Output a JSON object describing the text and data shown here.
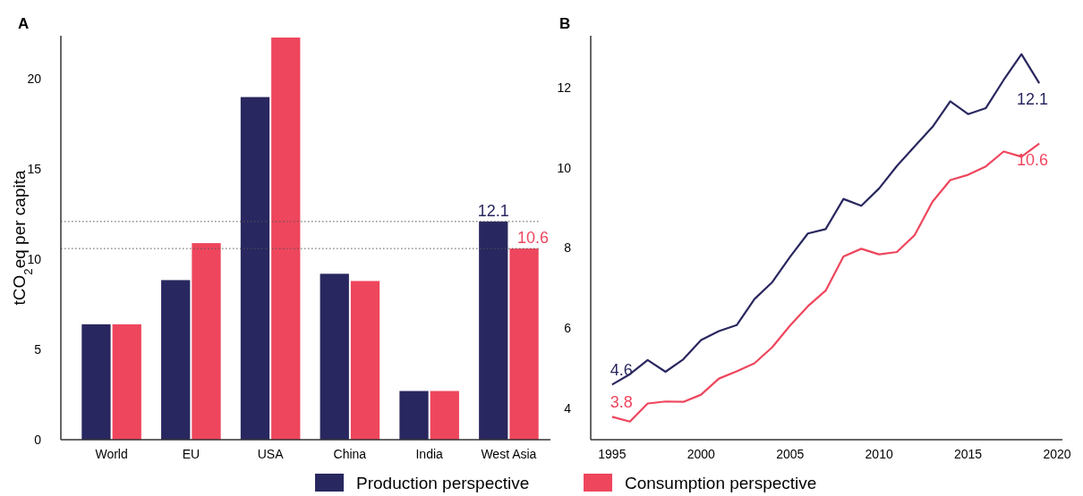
{
  "chart_data": [
    {
      "type": "bar",
      "title": "A",
      "ylabel": "tCO$_{2}$eq per capita",
      "categories": [
        "World",
        "EU",
        "USA",
        "China",
        "India",
        "West Asia"
      ],
      "ylim": [
        0,
        22.4
      ],
      "yticks": [
        0,
        5,
        10,
        15,
        20
      ],
      "legend": "bottom",
      "grid": false,
      "series": [
        {
          "name": "Production perspective",
          "color": "#29275f",
          "values": [
            6.4,
            8.85,
            19.0,
            9.2,
            2.7,
            12.1
          ],
          "value_labels": [
            null,
            null,
            null,
            null,
            null,
            "12.1"
          ]
        },
        {
          "name": "Consumption perspective",
          "color": "#ee465d",
          "values": [
            6.4,
            10.9,
            22.3,
            8.8,
            2.7,
            10.6
          ],
          "value_labels": [
            null,
            null,
            null,
            null,
            null,
            "10.6"
          ]
        }
      ],
      "ref_lines": [
        {
          "axis": "y",
          "value": 12.1,
          "line_style": "dotted",
          "color": "#555555"
        },
        {
          "axis": "y",
          "value": 10.6,
          "line_style": "dotted",
          "color": "#555555"
        }
      ]
    },
    {
      "type": "line",
      "title": "B",
      "x": [
        1995,
        1996,
        1997,
        1998,
        1999,
        2000,
        2001,
        2002,
        2003,
        2004,
        2005,
        2006,
        2007,
        2008,
        2009,
        2010,
        2011,
        2012,
        2013,
        2014,
        2015,
        2016,
        2017,
        2018,
        2019
      ],
      "xlim": [
        1993.8,
        2020.3
      ],
      "xticks": [
        1995,
        2000,
        2005,
        2010,
        2015,
        2020
      ],
      "ylim": [
        3.23,
        13.28
      ],
      "yticks": [
        4,
        6,
        8,
        10,
        12
      ],
      "grid": false,
      "marker": "none",
      "line_style": "solid",
      "series": [
        {
          "color": "#29275f",
          "values": [
            4.6,
            4.86,
            5.21,
            4.92,
            5.23,
            5.71,
            5.93,
            6.08,
            6.73,
            7.15,
            7.78,
            8.36,
            8.47,
            9.22,
            9.05,
            9.48,
            10.04,
            10.53,
            11.01,
            11.65,
            11.33,
            11.48,
            12.18,
            12.82,
            12.1
          ],
          "value_labels": [
            "4.6",
            null,
            null,
            null,
            null,
            null,
            null,
            null,
            null,
            null,
            null,
            null,
            null,
            null,
            null,
            null,
            null,
            null,
            null,
            null,
            null,
            null,
            null,
            null,
            "12.1"
          ]
        },
        {
          "color": "#ee465d",
          "values": [
            3.8,
            3.68,
            4.13,
            4.18,
            4.17,
            4.35,
            4.75,
            4.93,
            5.13,
            5.53,
            6.07,
            6.55,
            6.94,
            7.79,
            7.98,
            7.84,
            7.9,
            8.32,
            9.15,
            9.69,
            9.82,
            10.03,
            10.4,
            10.27,
            10.6
          ],
          "value_labels": [
            "3.8",
            null,
            null,
            null,
            null,
            null,
            null,
            null,
            null,
            null,
            null,
            null,
            null,
            null,
            null,
            null,
            null,
            null,
            null,
            null,
            null,
            null,
            null,
            null,
            "10.6"
          ]
        }
      ]
    }
  ]
}
